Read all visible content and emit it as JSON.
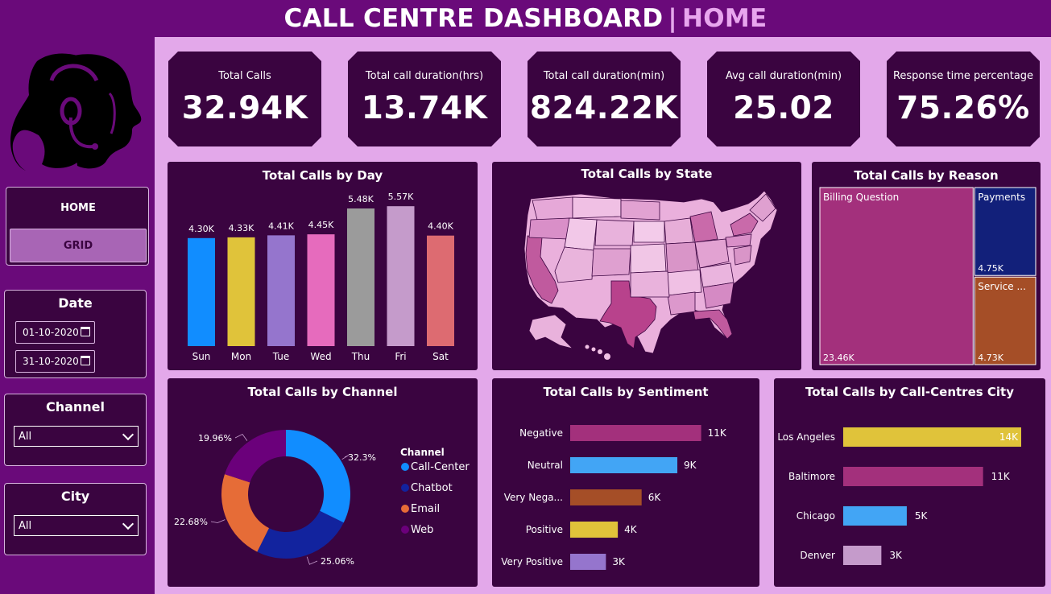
{
  "header": {
    "title": "CALL CENTRE DASHBOARD",
    "separator": "|",
    "page": "HOME"
  },
  "sidebar": {
    "nav": {
      "home": "HOME",
      "grid": "GRID"
    },
    "date": {
      "title": "Date",
      "start": "01-10-2020",
      "end": "31-10-2020"
    },
    "channel": {
      "title": "Channel",
      "value": "All"
    },
    "city": {
      "title": "City",
      "value": "All"
    }
  },
  "kpis": [
    {
      "label": "Total Calls",
      "value": "32.94K"
    },
    {
      "label": "Total call duration(hrs)",
      "value": "13.74K"
    },
    {
      "label": "Total call duration(min)",
      "value": "824.22K"
    },
    {
      "label": "Avg call duration(min)",
      "value": "25.02"
    },
    {
      "label": "Response time percentage",
      "value": "75.26%"
    }
  ],
  "colors": {
    "accent": "#6a0a7a",
    "panel": "#3a0440",
    "bg": "#e3a8ea"
  },
  "chart_data": [
    {
      "id": "by-day",
      "type": "bar",
      "title": "Total Calls by Day",
      "categories": [
        "Sun",
        "Mon",
        "Tue",
        "Wed",
        "Thu",
        "Fri",
        "Sat"
      ],
      "values": [
        4.3,
        4.33,
        4.41,
        4.45,
        5.48,
        5.57,
        4.4
      ],
      "labels": [
        "4.30K",
        "4.33K",
        "4.41K",
        "4.45K",
        "5.48K",
        "5.57K",
        "4.40K"
      ],
      "colors": [
        "#118dff",
        "#e0c33a",
        "#9575cd",
        "#e66bbd",
        "#9b9b9b",
        "#c59bcb",
        "#dd6b71"
      ],
      "ylim": [
        0,
        5.8
      ]
    },
    {
      "id": "by-state",
      "type": "map",
      "title": "Total Calls by State"
    },
    {
      "id": "by-reason",
      "type": "treemap",
      "title": "Total Calls by Reason",
      "categories": [
        "Billing Question",
        "Payments",
        "Service ..."
      ],
      "values": [
        23.46,
        4.75,
        4.73
      ],
      "labels": [
        "23.46K",
        "4.75K",
        "4.73K"
      ],
      "colors": [
        "#a3307c",
        "#12207a",
        "#a54e27"
      ]
    },
    {
      "id": "by-channel",
      "type": "pie",
      "title": "Total Calls by Channel",
      "legend_title": "Channel",
      "categories": [
        "Call-Center",
        "Chatbot",
        "Email",
        "Web"
      ],
      "values": [
        32.3,
        25.06,
        22.68,
        19.96
      ],
      "labels": [
        "32.3%",
        "25.06%",
        "22.68%",
        "19.96%"
      ],
      "colors": [
        "#118dff",
        "#12239e",
        "#e66c37",
        "#6b007b"
      ]
    },
    {
      "id": "by-sentiment",
      "type": "bar",
      "orientation": "horizontal",
      "title": "Total Calls by Sentiment",
      "categories": [
        "Negative",
        "Neutral",
        "Very Nega...",
        "Positive",
        "Very Positive"
      ],
      "values": [
        11,
        9,
        6,
        4,
        3
      ],
      "labels": [
        "11K",
        "9K",
        "6K",
        "4K",
        "3K"
      ],
      "colors": [
        "#a3307c",
        "#42a5f5",
        "#a54e27",
        "#e0c33a",
        "#9575cd"
      ],
      "xlim": [
        0,
        11.5
      ]
    },
    {
      "id": "by-city",
      "type": "bar",
      "orientation": "horizontal",
      "title": "Total Calls by Call-Centres City",
      "categories": [
        "Los Angeles",
        "Baltimore",
        "Chicago",
        "Denver"
      ],
      "values": [
        14,
        11,
        5,
        3
      ],
      "labels": [
        "14K",
        "11K",
        "5K",
        "3K"
      ],
      "colors": [
        "#e0c33a",
        "#a3307c",
        "#42a5f5",
        "#c59bcb"
      ],
      "xlim": [
        0,
        14
      ]
    }
  ]
}
